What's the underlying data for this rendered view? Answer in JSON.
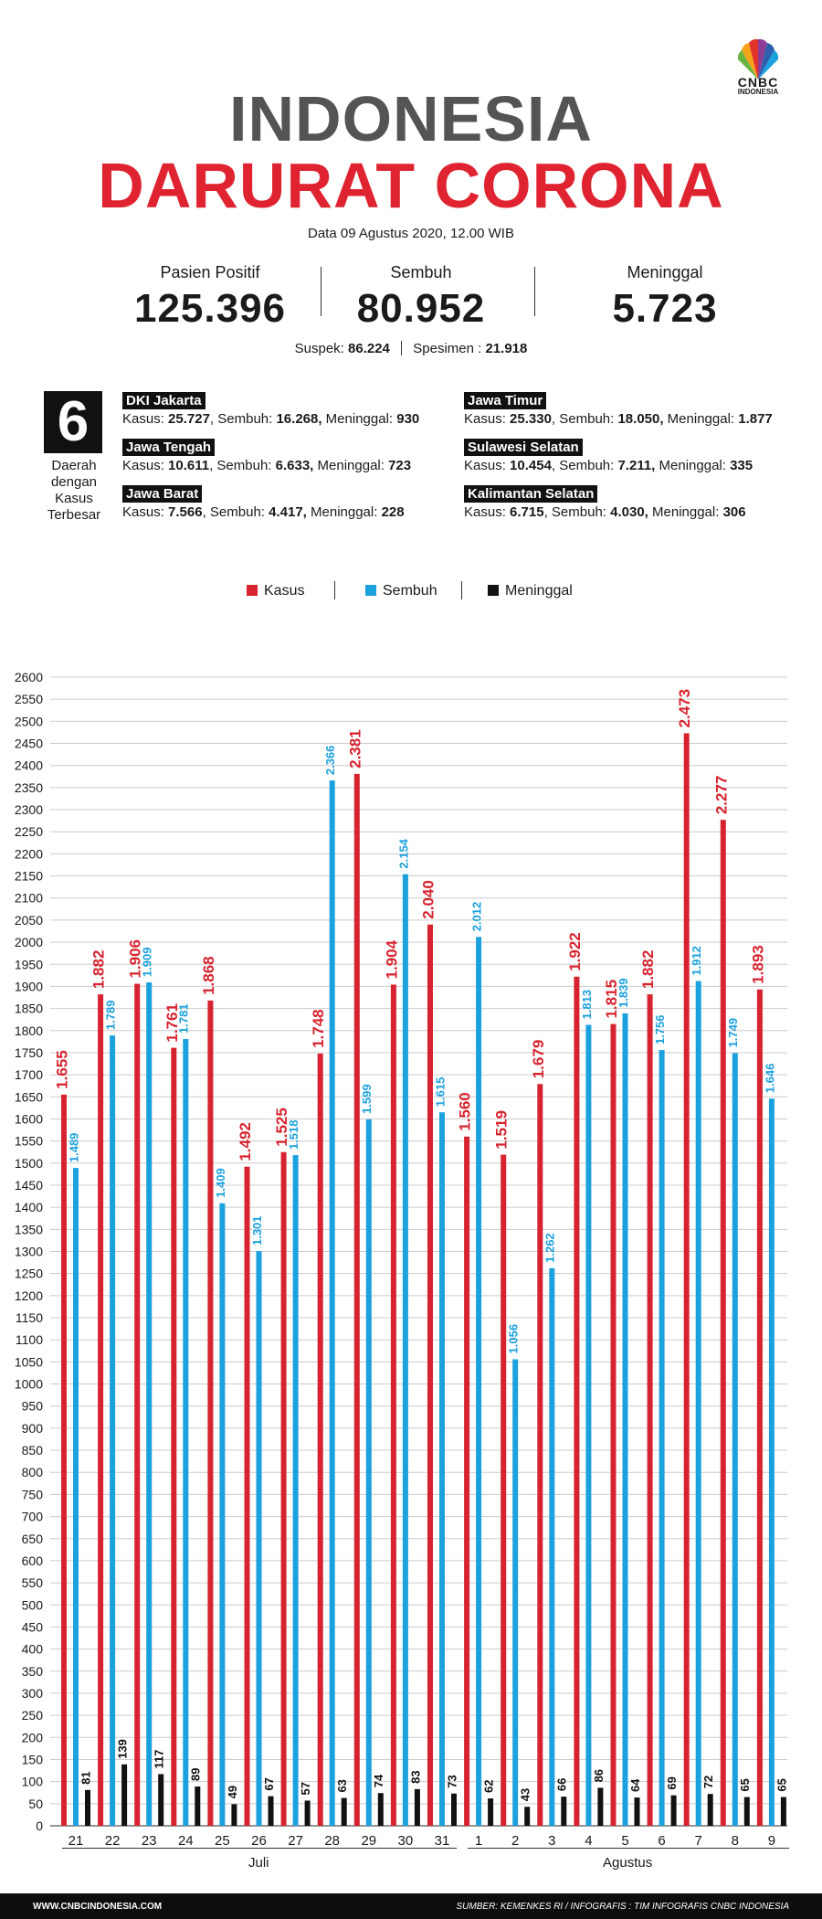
{
  "brand": {
    "name": "CNBC",
    "sub": "INDONESIA"
  },
  "header": {
    "title_line1": "INDONESIA",
    "title_line2": "DARURAT CORONA",
    "date": "Data 09 Agustus 2020, 12.00 WIB"
  },
  "stats": [
    {
      "label": "Pasien Positif",
      "value": "125.396"
    },
    {
      "label": "Sembuh",
      "value": "80.952"
    },
    {
      "label": "Meninggal",
      "value": "5.723"
    }
  ],
  "suspek": {
    "label": "Suspek:",
    "value": "86.224",
    "label2": "Spesimen :",
    "value2": "21.918"
  },
  "regions": {
    "count": "6",
    "label": "Daerah dengan Kasus Terbesar",
    "items": [
      {
        "name": "DKI Jakarta",
        "kasus": "25.727",
        "sembuh": "16.268",
        "meninggal": "930"
      },
      {
        "name": "Jawa Tengah",
        "kasus": "10.611",
        "sembuh": "6.633",
        "meninggal": "723"
      },
      {
        "name": "Jawa Barat",
        "kasus": "7.566",
        "sembuh": "4.417",
        "meninggal": "228"
      },
      {
        "name": "Jawa Timur",
        "kasus": "25.330",
        "sembuh": "18.050",
        "meninggal": "1.877"
      },
      {
        "name": "Sulawesi Selatan",
        "kasus": "10.454",
        "sembuh": "7.211",
        "meninggal": "335"
      },
      {
        "name": "Kalimantan Selatan",
        "kasus": "6.715",
        "sembuh": "4.030",
        "meninggal": "306"
      }
    ],
    "labels": {
      "kasus": "Kasus:",
      "sembuh": "Sembuh:",
      "meninggal": "Meninggal:"
    }
  },
  "colors": {
    "kasus": "#d7232f",
    "sembuh": "#1ba1dd",
    "meninggal": "#111111",
    "grid": "#cccccc"
  },
  "chart_data": {
    "type": "bar",
    "categories": [
      "21",
      "22",
      "23",
      "24",
      "25",
      "26",
      "27",
      "28",
      "29",
      "30",
      "31",
      "1",
      "2",
      "3",
      "4",
      "5",
      "6",
      "7",
      "8",
      "9"
    ],
    "months": [
      {
        "label": "Juli"
      },
      {
        "label": "Agustus"
      }
    ],
    "series": [
      {
        "name": "Kasus",
        "values": [
          1655,
          1882,
          1906,
          1761,
          1868,
          1492,
          1525,
          1748,
          2381,
          1904,
          2040,
          1560,
          1519,
          1679,
          1922,
          1815,
          1882,
          2473,
          2277,
          1893
        ],
        "labels": [
          "1.655",
          "1.882",
          "1.906",
          "1.761",
          "1.868",
          "1.492",
          "1.525",
          "1.748",
          "2.381",
          "1.904",
          "2.040",
          "1.560",
          "1.519",
          "1.679",
          "1.922",
          "1.815",
          "1.882",
          "2.473",
          "2.277",
          "1.893"
        ]
      },
      {
        "name": "Sembuh",
        "values": [
          1489,
          1789,
          1909,
          1781,
          1409,
          1301,
          1518,
          2366,
          1599,
          2154,
          1615,
          2012,
          1056,
          1262,
          1813,
          1839,
          1756,
          1912,
          1749,
          1646
        ],
        "labels": [
          "1.489",
          "1.789",
          "1.909",
          "1.781",
          "1.409",
          "1.301",
          "1.518",
          "2.366",
          "1.599",
          "2.154",
          "1.615",
          "2.012",
          "1.056",
          "1.262",
          "1.813",
          "1.839",
          "1.756",
          "1.912",
          "1.749",
          "1.646"
        ]
      },
      {
        "name": "Meninggal",
        "values": [
          81,
          139,
          117,
          89,
          49,
          67,
          57,
          63,
          74,
          83,
          73,
          62,
          43,
          66,
          86,
          64,
          69,
          72,
          65,
          65
        ],
        "labels": [
          "81",
          "139",
          "117",
          "89",
          "49",
          "67",
          "57",
          "63",
          "74",
          "83",
          "73",
          "62",
          "43",
          "66",
          "86",
          "64",
          "69",
          "72",
          "65",
          "65"
        ]
      }
    ],
    "ylim": [
      0,
      2600
    ],
    "yticks": [
      0,
      50,
      100,
      150,
      200,
      250,
      300,
      350,
      400,
      450,
      500,
      550,
      600,
      650,
      700,
      750,
      800,
      850,
      900,
      950,
      1000,
      1050,
      1100,
      1150,
      1200,
      1250,
      1300,
      1350,
      1400,
      1450,
      1500,
      1550,
      1600,
      1650,
      1700,
      1750,
      1800,
      1850,
      1900,
      1950,
      2000,
      2050,
      2100,
      2150,
      2200,
      2250,
      2300,
      2350,
      2400,
      2450,
      2500,
      2550,
      2600
    ],
    "grid": true
  },
  "footer": {
    "left": "WWW.CNBCINDONESIA.COM",
    "right": "SUMBER: KEMENKES RI / INFOGRAFIS : TIM INFOGRAFIS CNBC INDONESIA"
  }
}
